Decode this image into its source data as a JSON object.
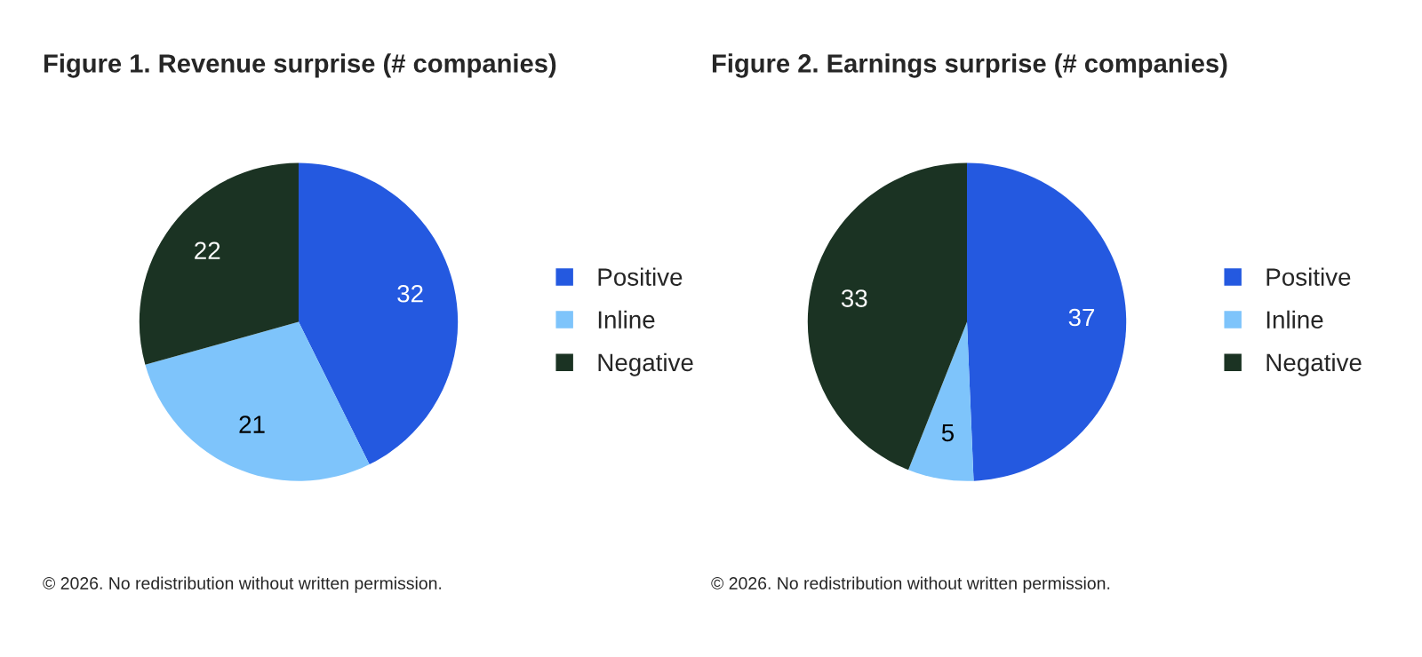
{
  "chart_data": [
    {
      "type": "pie",
      "title": "Figure 1. Revenue surprise (# companies)",
      "categories": [
        "Positive",
        "Inline",
        "Negative"
      ],
      "values": [
        32,
        21,
        22
      ],
      "colors": [
        "#2459e0",
        "#7ec4fb",
        "#1b3323"
      ],
      "data_labels": true,
      "legend": "right",
      "annotations": [
        "© 2026. No redistribution without written permission."
      ]
    },
    {
      "type": "pie",
      "title": "Figure 2. Earnings surprise (# companies)",
      "categories": [
        "Positive",
        "Inline",
        "Negative"
      ],
      "values": [
        37,
        5,
        33
      ],
      "colors": [
        "#2459e0",
        "#7ec4fb",
        "#1b3323"
      ],
      "data_labels": true,
      "legend": "right",
      "annotations": [
        "© 2026. No redistribution without written permission."
      ]
    }
  ]
}
